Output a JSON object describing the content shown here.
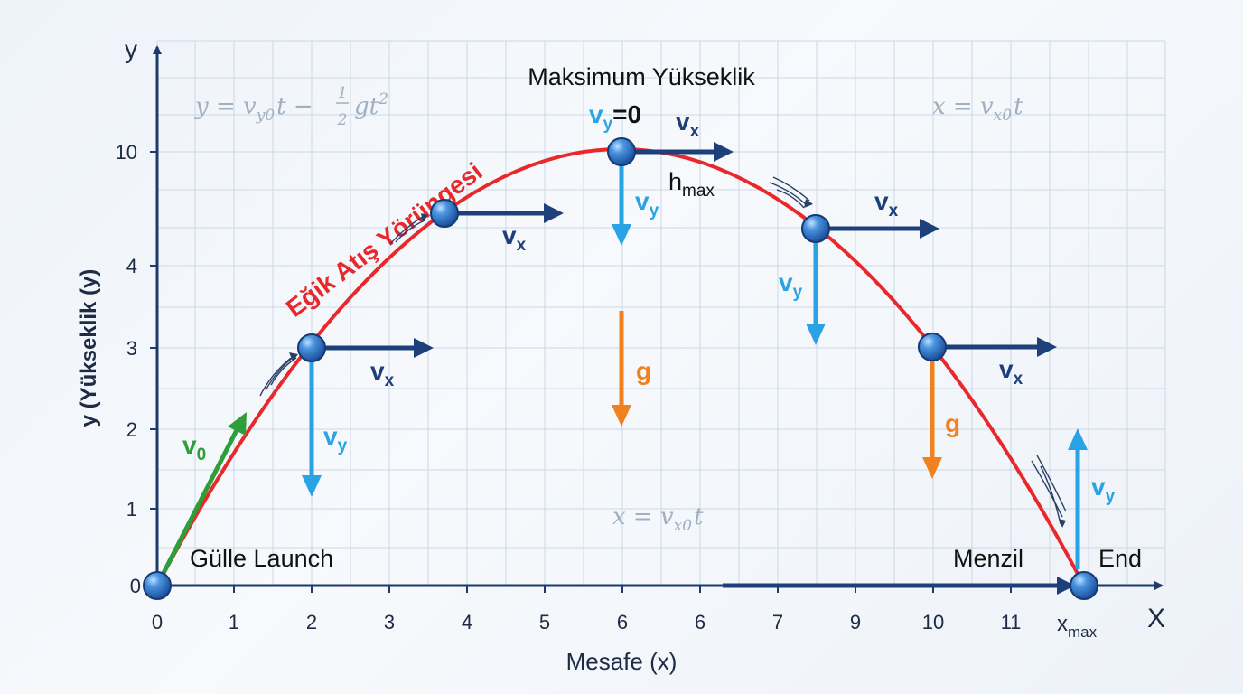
{
  "colors": {
    "axis": "#1d3a6b",
    "trajectory": "#e8282b",
    "vx": "#1d3f7a",
    "vy": "#29a3e3",
    "v0": "#2e9e3a",
    "g": "#f0811e",
    "grid": "#c9d6e6",
    "ball": "#2f7bd6",
    "equation": "#9fb0c2"
  },
  "axes": {
    "x_label": "Mesafe (x)",
    "y_label": "y (Yükseklik (y)",
    "x_axis_letter": "X",
    "y_axis_letter": "y",
    "x_ticks": [
      "0",
      "1",
      "2",
      "3",
      "4",
      "5",
      "6",
      "6",
      "7",
      "9",
      "10",
      "11"
    ],
    "y_ticks": [
      "0",
      "1",
      "2",
      "3",
      "4",
      "10"
    ],
    "x_max": {
      "main": "x",
      "sub": "max"
    }
  },
  "labels": {
    "max_height_title": "Maksimum Yükseklik",
    "trajectory": "Eğik Atış Yörüngesi",
    "launch": "Gülle Launch",
    "range": "Menzil",
    "end": "End",
    "hmax": {
      "main": "h",
      "sub": "max"
    },
    "vy_zero": {
      "main": "v",
      "sub": "y",
      "suffix": "=0"
    }
  },
  "equations": {
    "y_eq": {
      "lhs": "y = v",
      "sub1": "y0",
      "mid": "t −",
      "frac_num": "1",
      "frac_den": "2",
      "tail": "gt",
      "sup": "2"
    },
    "x_eq_top": {
      "lhs": "x = v",
      "sub": "x0",
      "tail": "t"
    },
    "x_eq_mid": {
      "lhs": "x = v",
      "sub": "x0",
      "tail": "t"
    }
  },
  "vectors": {
    "vx": {
      "main": "v",
      "sub": "x"
    },
    "vy": {
      "main": "v",
      "sub": "y"
    },
    "v0": {
      "main": "v",
      "sub": "0"
    },
    "g": "g"
  }
}
